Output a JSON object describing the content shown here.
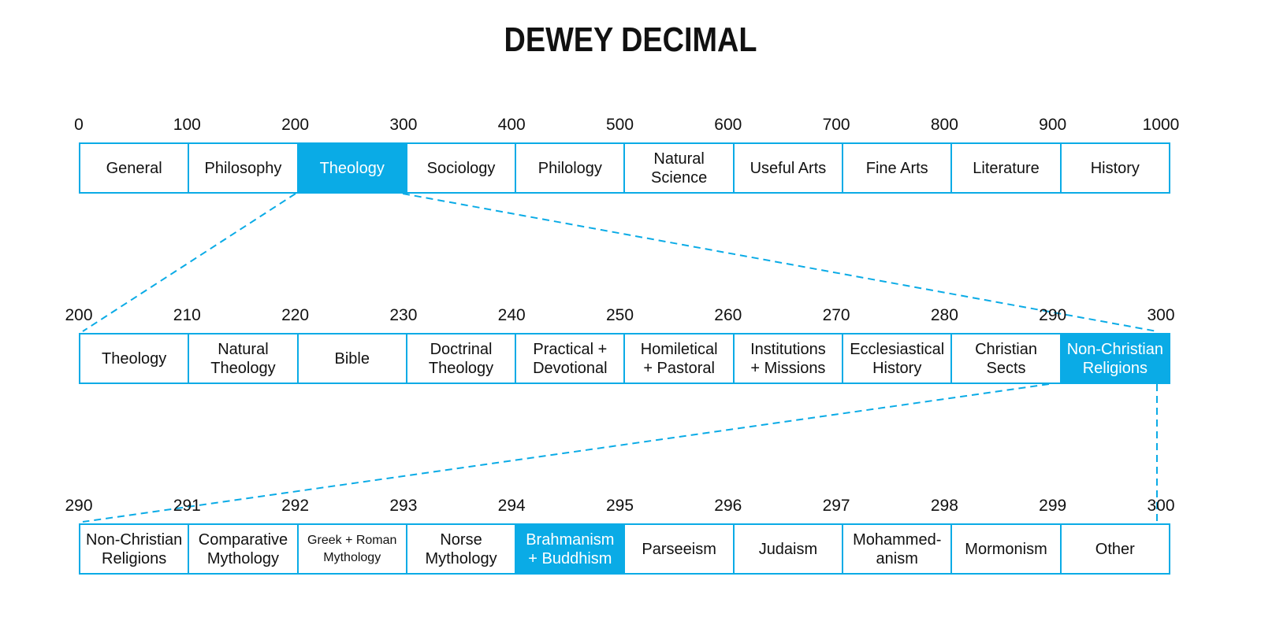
{
  "title": "DEWEY DECIMAL",
  "accent_color": "#0aabe6",
  "levels": [
    {
      "ticks": [
        "0",
        "100",
        "200",
        "300",
        "400",
        "500",
        "600",
        "700",
        "800",
        "900",
        "1000"
      ],
      "cells": [
        {
          "label": "General",
          "highlighted": false
        },
        {
          "label": "Philosophy",
          "highlighted": false
        },
        {
          "label": "Theology",
          "highlighted": true
        },
        {
          "label": "Sociology",
          "highlighted": false
        },
        {
          "label": "Philology",
          "highlighted": false
        },
        {
          "label": "Natural\nScience",
          "highlighted": false
        },
        {
          "label": "Useful Arts",
          "highlighted": false
        },
        {
          "label": "Fine Arts",
          "highlighted": false
        },
        {
          "label": "Literature",
          "highlighted": false
        },
        {
          "label": "History",
          "highlighted": false
        }
      ]
    },
    {
      "ticks": [
        "200",
        "210",
        "220",
        "230",
        "240",
        "250",
        "260",
        "270",
        "280",
        "290",
        "300"
      ],
      "cells": [
        {
          "label": "Theology",
          "highlighted": false
        },
        {
          "label": "Natural\nTheology",
          "highlighted": false
        },
        {
          "label": "Bible",
          "highlighted": false
        },
        {
          "label": "Doctrinal\nTheology",
          "highlighted": false
        },
        {
          "label": "Practical +\nDevotional",
          "highlighted": false
        },
        {
          "label": "Homiletical\n+ Pastoral",
          "highlighted": false
        },
        {
          "label": "Institutions\n+ Missions",
          "highlighted": false
        },
        {
          "label": "Ecclesiastical\nHistory",
          "highlighted": false
        },
        {
          "label": "Christian\nSects",
          "highlighted": false
        },
        {
          "label": "Non-Christian\nReligions",
          "highlighted": true
        }
      ]
    },
    {
      "ticks": [
        "290",
        "291",
        "292",
        "293",
        "294",
        "295",
        "296",
        "297",
        "298",
        "299",
        "300"
      ],
      "cells": [
        {
          "label": "Non-Christian\nReligions",
          "highlighted": false
        },
        {
          "label": "Comparative\nMythology",
          "highlighted": false
        },
        {
          "label": "Greek + Roman\nMythology",
          "highlighted": false,
          "small": true
        },
        {
          "label": "Norse\nMythology",
          "highlighted": false
        },
        {
          "label": "Brahmanism\n+ Buddhism",
          "highlighted": true
        },
        {
          "label": "Parseeism",
          "highlighted": false
        },
        {
          "label": "Judaism",
          "highlighted": false
        },
        {
          "label": "Mohammed-\nanism",
          "highlighted": false
        },
        {
          "label": "Mormonism",
          "highlighted": false
        },
        {
          "label": "Other",
          "highlighted": false
        }
      ]
    }
  ]
}
